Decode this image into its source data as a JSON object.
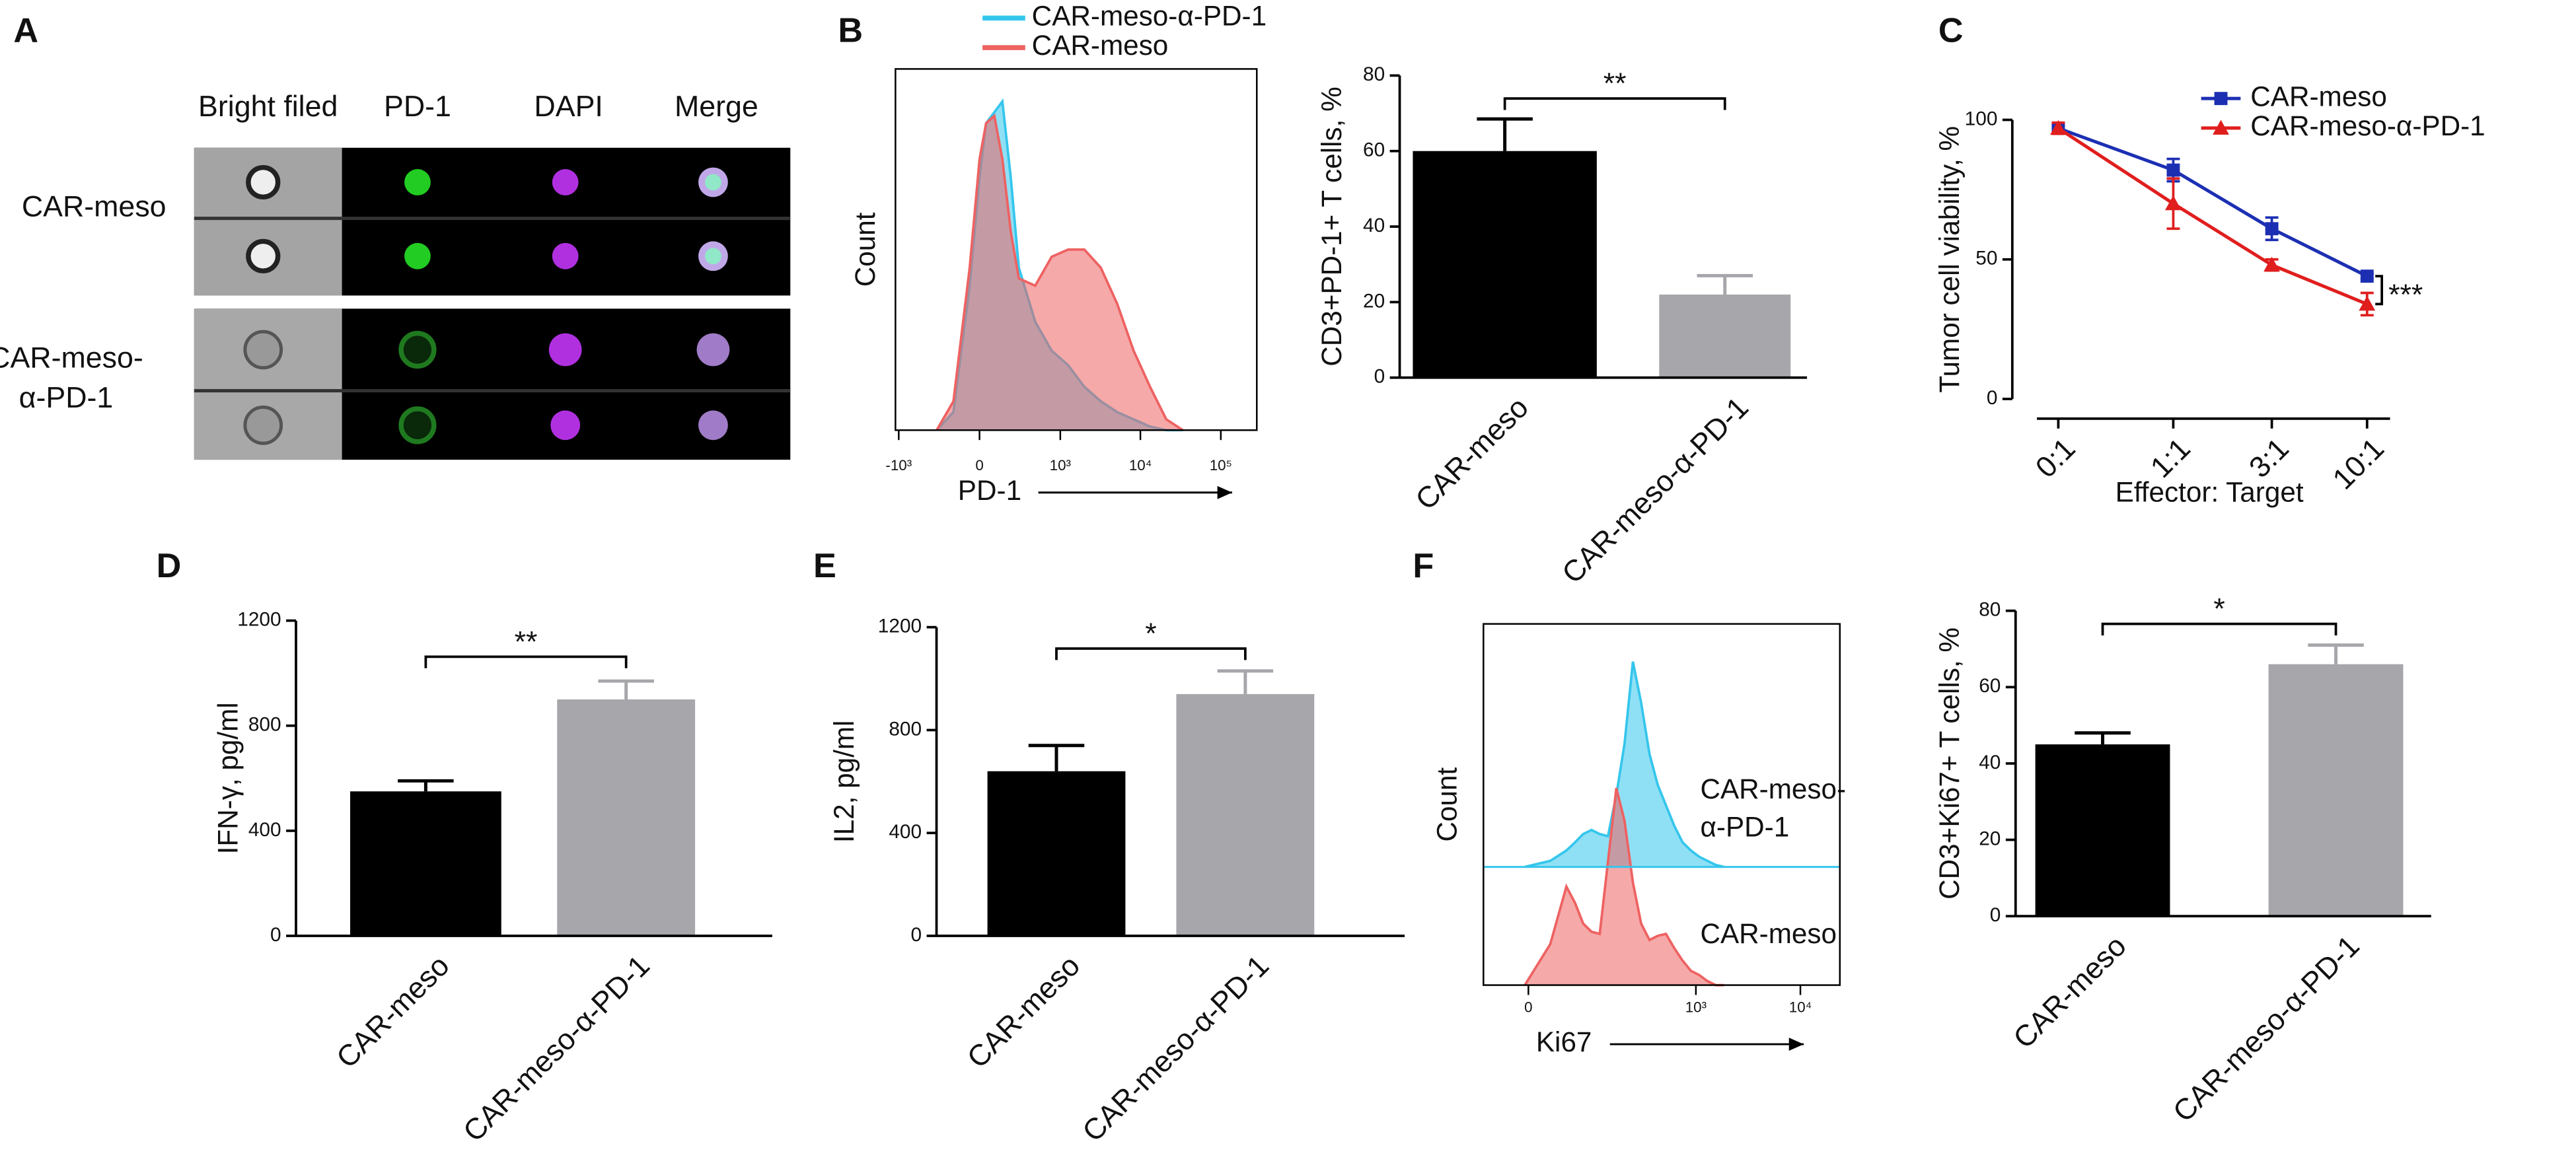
{
  "panel_a": {
    "label": "A",
    "columns": [
      "Bright filed",
      "PD-1",
      "DAPI",
      "Merge"
    ],
    "rows": [
      "CAR-meso",
      "CAR-meso-\nα-PD-1"
    ]
  },
  "chart_data": [
    {
      "type": "area",
      "panel": "B",
      "xscale": "biexponential",
      "xlabel": "PD-1",
      "ylabel": "Count",
      "x": [
        -312,
        -164,
        -57,
        0,
        38,
        87,
        141,
        204,
        276,
        472,
        776,
        1254,
        2004,
        3210,
        5140,
        8220,
        13160,
        21000,
        33700
      ],
      "series": [
        {
          "name": "CAR-meso-α-PD-1",
          "color": "#35c6ec",
          "values": [
            0,
            5,
            40,
            70,
            85,
            88,
            91,
            70,
            45,
            30,
            22,
            18,
            12,
            8,
            5,
            3,
            1,
            0,
            0
          ]
        },
        {
          "name": "CAR-meso",
          "color": "#ee6262",
          "values": [
            0,
            8,
            45,
            75,
            85,
            87,
            75,
            55,
            42,
            40,
            48,
            50,
            50,
            45,
            35,
            22,
            12,
            3,
            0
          ]
        }
      ],
      "xlim": [
        -1100,
        280000
      ],
      "ylim": [
        0,
        100
      ],
      "xticks": [
        {
          "value": -1000,
          "label": "-10³"
        },
        0,
        {
          "value": 1000,
          "label": "10³"
        },
        {
          "value": 10000,
          "label": "10⁴"
        },
        {
          "value": 100000,
          "label": "10⁵"
        }
      ]
    },
    {
      "type": "bar",
      "categories": [
        "CAR-meso",
        "CAR-meso-α-PD-1"
      ],
      "values": [
        60,
        22
      ],
      "errors": [
        8.5,
        5
      ],
      "colors": [
        "#000000",
        "#a6a6ab"
      ],
      "ylim": [
        0,
        80
      ],
      "yticks": [
        0,
        20,
        40,
        60,
        80
      ],
      "ylabel": "CD3+PD-1+ T cells, %",
      "annotation": "**"
    },
    {
      "type": "line",
      "panel": "C",
      "categories": [
        "0:1",
        "1:1",
        "3:1",
        "10:1"
      ],
      "series": [
        {
          "name": "CAR-meso",
          "color": "#1c2fb3",
          "marker": "square",
          "values": [
            97,
            82,
            61,
            44
          ],
          "errors": [
            1,
            4,
            4,
            1
          ]
        },
        {
          "name": "CAR-meso-α-PD-1",
          "color": "#e01e1e",
          "marker": "triangle",
          "values": [
            97,
            70,
            48,
            34
          ],
          "errors": [
            2,
            9,
            2,
            4
          ]
        }
      ],
      "ylim": [
        0,
        100
      ],
      "yticks": [
        0,
        50,
        100
      ],
      "xlabel": "Effector: Target",
      "ylabel": "Tumor cell viability, %",
      "annotation": "***"
    },
    {
      "type": "bar",
      "panel": "D",
      "categories": [
        "CAR-meso",
        "CAR-meso-α-PD-1"
      ],
      "values": [
        550,
        900
      ],
      "errors": [
        40,
        70
      ],
      "colors": [
        "#000000",
        "#a6a6ab"
      ],
      "ylim": [
        0,
        1200
      ],
      "yticks": [
        0,
        400,
        800,
        1200
      ],
      "ylabel": "IFN-γ, pg/ml",
      "annotation": "**"
    },
    {
      "type": "bar",
      "panel": "E",
      "categories": [
        "CAR-meso",
        "CAR-meso-α-PD-1"
      ],
      "values": [
        640,
        940
      ],
      "errors": [
        100,
        90
      ],
      "colors": [
        "#000000",
        "#a6a6ab"
      ],
      "ylim": [
        0,
        1200
      ],
      "yticks": [
        0,
        400,
        800,
        1200
      ],
      "ylabel": "IL2, pg/ml",
      "annotation": "*"
    },
    {
      "type": "area",
      "panel": "F",
      "xscale": "biexponential",
      "xlabel": "Ki67",
      "ylabel": "Count",
      "x": [
        -4,
        25,
        47,
        61,
        76,
        94,
        115,
        140,
        170,
        205,
        247,
        297,
        358,
        430,
        516,
        620,
        744,
        894,
        1072,
        1287,
        1545,
        1855
      ],
      "series": [
        {
          "name": "CAR-meso-\nα-PD-1",
          "color": "#35c6ec",
          "values": [
            0,
            3,
            8,
            12,
            16,
            18,
            16,
            15,
            35,
            60,
            100,
            80,
            55,
            40,
            30,
            20,
            12,
            8,
            5,
            3,
            1,
            0
          ]
        },
        {
          "name": "CAR-meso",
          "color": "#ee6262",
          "values": [
            0,
            20,
            48,
            40,
            30,
            26,
            25,
            60,
            96,
            80,
            50,
            30,
            22,
            24,
            25,
            18,
            12,
            7,
            5,
            2,
            0,
            0
          ]
        }
      ],
      "xlim": [
        -58,
        23850
      ],
      "ylim": [
        0,
        100
      ],
      "xticks": [
        0,
        {
          "value": 1000,
          "label": "10³"
        },
        {
          "value": 10000,
          "label": "10⁴"
        }
      ]
    },
    {
      "type": "bar",
      "categories": [
        "CAR-meso",
        "CAR-meso-α-PD-1"
      ],
      "values": [
        45,
        66
      ],
      "errors": [
        3,
        5
      ],
      "colors": [
        "#000000",
        "#a6a6ab"
      ],
      "ylim": [
        0,
        80
      ],
      "yticks": [
        0,
        20,
        40,
        60,
        80
      ],
      "ylabel": "CD3+Ki67+ T cells, %",
      "annotation": "*"
    }
  ]
}
